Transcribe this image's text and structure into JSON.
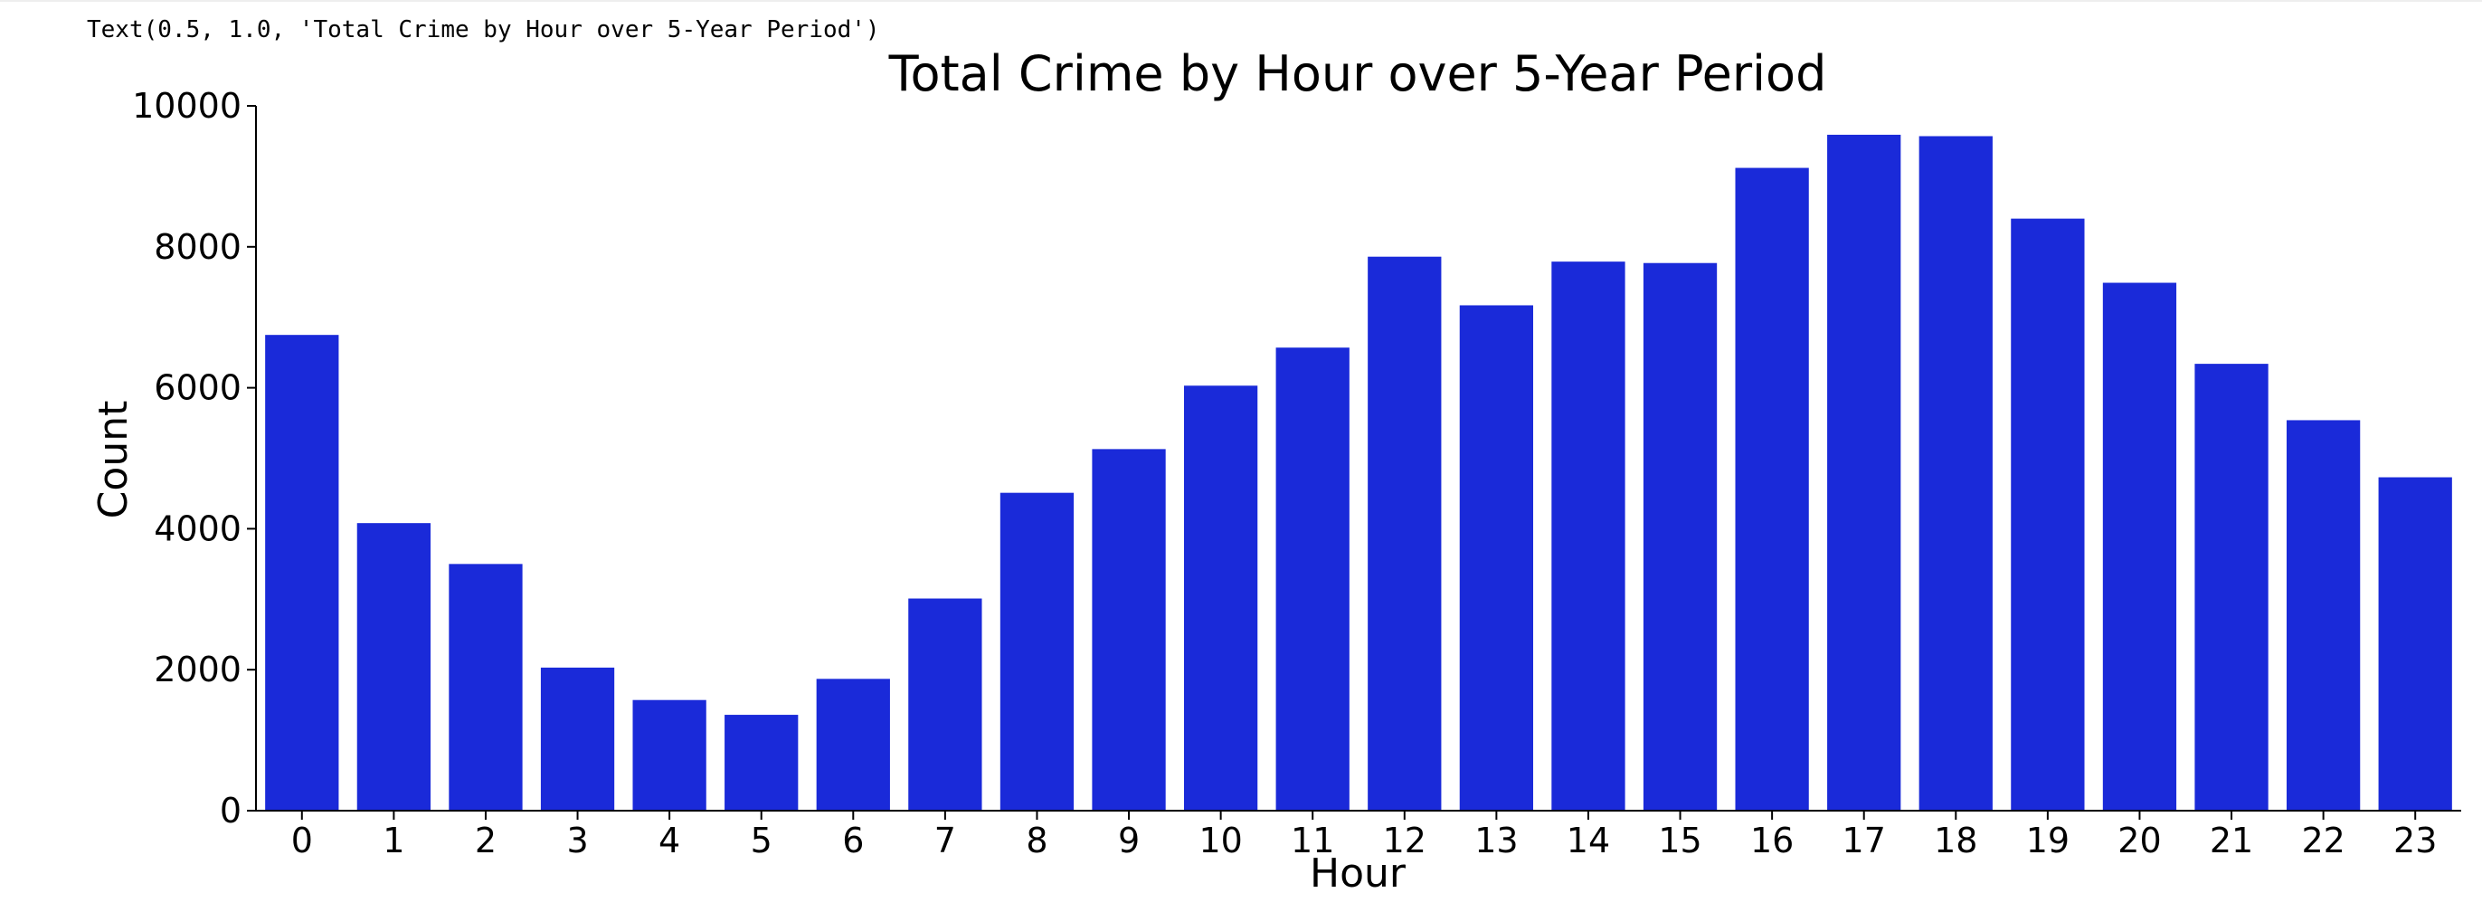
{
  "output_repr": "Text(0.5, 1.0, 'Total Crime by Hour over 5-Year Period')",
  "colors": {
    "bar": "#1a2ad9",
    "axis": "#000000",
    "text": "#000000"
  },
  "chart_data": {
    "type": "bar",
    "title": "Total Crime by Hour over 5-Year Period",
    "xlabel": "Hour",
    "ylabel": "Count",
    "categories": [
      "0",
      "1",
      "2",
      "3",
      "4",
      "5",
      "6",
      "7",
      "8",
      "9",
      "10",
      "11",
      "12",
      "13",
      "14",
      "15",
      "16",
      "17",
      "18",
      "19",
      "20",
      "21",
      "22",
      "23"
    ],
    "values": [
      6750,
      4080,
      3500,
      2030,
      1570,
      1360,
      1870,
      3010,
      4510,
      5130,
      6030,
      6570,
      7860,
      7170,
      7790,
      7770,
      9120,
      9590,
      9570,
      8400,
      7490,
      6340,
      5540,
      4730
    ],
    "ylim": [
      0,
      10000
    ],
    "yticks": [
      0,
      2000,
      4000,
      6000,
      8000,
      10000
    ],
    "grid": false,
    "legend": "none"
  }
}
